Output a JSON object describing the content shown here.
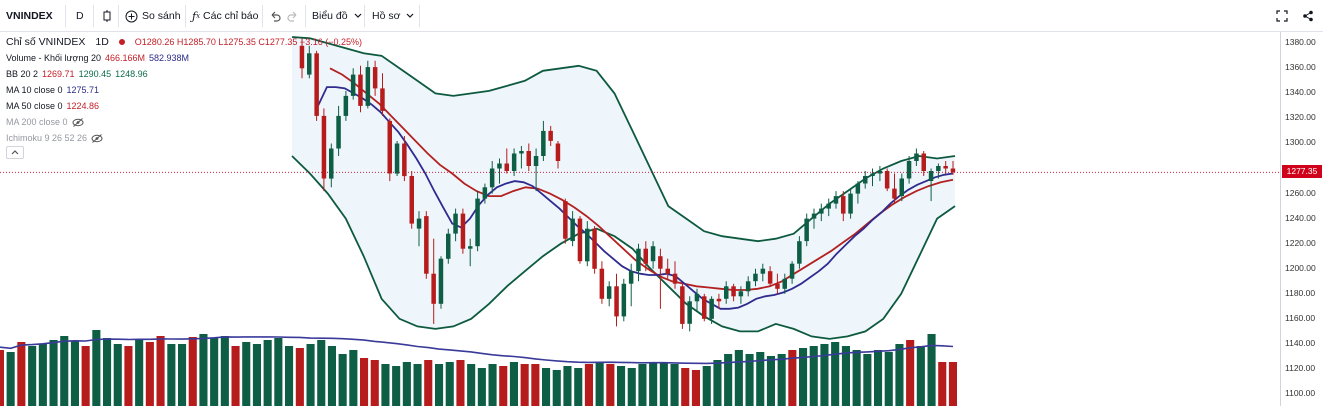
{
  "toolbar": {
    "symbol": "VNINDEX",
    "interval": "D",
    "compare_label": "So sánh",
    "indicators_label": "Các chỉ báo",
    "chart_type_label": "Biểu đồ",
    "profile_label": "Hồ sơ"
  },
  "legend": {
    "title": "Chỉ số VNINDEX",
    "interval": "1D",
    "ohlc": "O1280.26 H1285.70 L1275.35 C1277.35 −3.16 (−0.25%)",
    "volume": {
      "name": "Volume - Khối lượng 20",
      "v1": "466.166M",
      "v2": "582.938M"
    },
    "bb": {
      "name": "BB 20 2",
      "v1": "1269.71",
      "v2": "1290.45",
      "v3": "1248.96"
    },
    "ma10": {
      "name": "MA 10 close 0",
      "v1": "1275.71"
    },
    "ma50": {
      "name": "MA 50 close 0",
      "v1": "1224.86"
    },
    "ma200": {
      "name": "MA 200 close 0"
    },
    "ichimoku": {
      "name": "Ichimoku 9 26 52 26"
    }
  },
  "axis": {
    "ticks": [
      "1380.00",
      "1360.00",
      "1340.00",
      "1320.00",
      "1300.00",
      "1280.00",
      "1260.00",
      "1240.00",
      "1220.00",
      "1200.00",
      "1180.00",
      "1160.00",
      "1140.00",
      "1120.00",
      "1100.00"
    ],
    "last_price": "1277.35"
  },
  "colors": {
    "up": "#0e5e46",
    "down": "#b71c1c",
    "ma10": "#2f2b8f",
    "ma50": "#b32121",
    "bb": "#0d5a3f",
    "bb_fill": "#eef5fb",
    "volume_ma": "#3a3a9a"
  },
  "chart_data": {
    "type": "candlestick",
    "y_range": [
      1100,
      1385
    ],
    "candles": [
      [
        1378,
        1384,
        1352,
        1360
      ],
      [
        1355,
        1378,
        1352,
        1372
      ],
      [
        1372,
        1374,
        1318,
        1322
      ],
      [
        1322,
        1328,
        1262,
        1272
      ],
      [
        1272,
        1300,
        1265,
        1296
      ],
      [
        1296,
        1330,
        1290,
        1322
      ],
      [
        1322,
        1342,
        1318,
        1338
      ],
      [
        1338,
        1360,
        1335,
        1355
      ],
      [
        1355,
        1362,
        1325,
        1330
      ],
      [
        1330,
        1366,
        1328,
        1361
      ],
      [
        1361,
        1366,
        1338,
        1344
      ],
      [
        1344,
        1356,
        1322,
        1326
      ],
      [
        1318,
        1320,
        1270,
        1276
      ],
      [
        1276,
        1302,
        1274,
        1300
      ],
      [
        1300,
        1306,
        1270,
        1274
      ],
      [
        1274,
        1278,
        1232,
        1236
      ],
      [
        1232,
        1246,
        1218,
        1240
      ],
      [
        1242,
        1246,
        1192,
        1196
      ],
      [
        1196,
        1224,
        1156,
        1172
      ],
      [
        1172,
        1210,
        1168,
        1208
      ],
      [
        1208,
        1232,
        1204,
        1228
      ],
      [
        1228,
        1248,
        1222,
        1244
      ],
      [
        1244,
        1248,
        1212,
        1216
      ],
      [
        1216,
        1224,
        1202,
        1218
      ],
      [
        1218,
        1262,
        1214,
        1256
      ],
      [
        1256,
        1268,
        1252,
        1265
      ],
      [
        1265,
        1286,
        1260,
        1280
      ],
      [
        1280,
        1288,
        1268,
        1284
      ],
      [
        1284,
        1296,
        1276,
        1278
      ],
      [
        1278,
        1296,
        1274,
        1292
      ],
      [
        1292,
        1298,
        1280,
        1294
      ],
      [
        1294,
        1300,
        1278,
        1282
      ],
      [
        1282,
        1296,
        1262,
        1290
      ],
      [
        1290,
        1318,
        1286,
        1310
      ],
      [
        1310,
        1314,
        1298,
        1302
      ],
      [
        1300,
        1302,
        1280,
        1286
      ],
      [
        1254,
        1256,
        1220,
        1224
      ],
      [
        1222,
        1246,
        1218,
        1240
      ],
      [
        1240,
        1242,
        1204,
        1206
      ],
      [
        1206,
        1238,
        1202,
        1232
      ],
      [
        1232,
        1234,
        1196,
        1200
      ],
      [
        1200,
        1206,
        1172,
        1176
      ],
      [
        1176,
        1190,
        1170,
        1186
      ],
      [
        1186,
        1196,
        1154,
        1162
      ],
      [
        1162,
        1192,
        1158,
        1188
      ],
      [
        1188,
        1204,
        1170,
        1198
      ],
      [
        1198,
        1220,
        1190,
        1216
      ],
      [
        1216,
        1222,
        1198,
        1204
      ],
      [
        1206,
        1222,
        1200,
        1218
      ],
      [
        1210,
        1216,
        1168,
        1200
      ],
      [
        1200,
        1208,
        1192,
        1196
      ],
      [
        1196,
        1206,
        1184,
        1188
      ],
      [
        1186,
        1188,
        1152,
        1156
      ],
      [
        1156,
        1178,
        1150,
        1174
      ],
      [
        1174,
        1184,
        1166,
        1180
      ],
      [
        1178,
        1180,
        1158,
        1160
      ],
      [
        1160,
        1178,
        1156,
        1176
      ],
      [
        1176,
        1180,
        1168,
        1174
      ],
      [
        1176,
        1190,
        1172,
        1186
      ],
      [
        1186,
        1188,
        1174,
        1178
      ],
      [
        1178,
        1186,
        1172,
        1182
      ],
      [
        1182,
        1194,
        1178,
        1190
      ],
      [
        1190,
        1200,
        1186,
        1196
      ],
      [
        1196,
        1204,
        1190,
        1200
      ],
      [
        1198,
        1202,
        1186,
        1188
      ],
      [
        1188,
        1196,
        1180,
        1184
      ],
      [
        1184,
        1196,
        1180,
        1192
      ],
      [
        1192,
        1206,
        1188,
        1204
      ],
      [
        1204,
        1226,
        1200,
        1222
      ],
      [
        1222,
        1244,
        1218,
        1240
      ],
      [
        1240,
        1248,
        1232,
        1244
      ],
      [
        1244,
        1252,
        1238,
        1248
      ],
      [
        1248,
        1256,
        1242,
        1252
      ],
      [
        1252,
        1262,
        1248,
        1258
      ],
      [
        1258,
        1262,
        1238,
        1244
      ],
      [
        1244,
        1264,
        1240,
        1260
      ],
      [
        1260,
        1270,
        1252,
        1268
      ],
      [
        1268,
        1278,
        1264,
        1274
      ],
      [
        1274,
        1280,
        1266,
        1276
      ],
      [
        1276,
        1282,
        1270,
        1278
      ],
      [
        1278,
        1280,
        1262,
        1264
      ],
      [
        1264,
        1276,
        1252,
        1256
      ],
      [
        1258,
        1276,
        1254,
        1272
      ],
      [
        1272,
        1290,
        1268,
        1286
      ],
      [
        1286,
        1296,
        1282,
        1292
      ],
      [
        1292,
        1294,
        1274,
        1278
      ],
      [
        1270,
        1280,
        1254,
        1278
      ],
      [
        1278,
        1284,
        1272,
        1282
      ],
      [
        1282,
        1286,
        1276,
        1280
      ],
      [
        1280,
        1286,
        1275,
        1277
      ]
    ],
    "volume_range": [
      0,
      900
    ],
    "volume": [
      560,
      540,
      640,
      600,
      620,
      660,
      700,
      650,
      600,
      760,
      680,
      620,
      600,
      660,
      640,
      700,
      620,
      620,
      690,
      720,
      680,
      700,
      600,
      640,
      620,
      660,
      680,
      600,
      580,
      620,
      660,
      600,
      520,
      560,
      480,
      460,
      420,
      400,
      440,
      420,
      460,
      420,
      440,
      460,
      420,
      380,
      420,
      400,
      440,
      420,
      420,
      380,
      360,
      400,
      380,
      420,
      440,
      420,
      400,
      380,
      420,
      440,
      440,
      420,
      380,
      360,
      400,
      460,
      520,
      560,
      520,
      540,
      500,
      520,
      560,
      580,
      600,
      620,
      640,
      600,
      560,
      520,
      560,
      540,
      620,
      660,
      600,
      720,
      440,
      440
    ],
    "ma10": [
      1330,
      1345,
      1345,
      1344,
      1340,
      1336,
      1331,
      1325,
      1317,
      1309,
      1299,
      1288,
      1276,
      1262,
      1249,
      1236,
      1233,
      1240,
      1251,
      1259,
      1265,
      1268,
      1270,
      1269,
      1266,
      1260,
      1254,
      1248,
      1241,
      1234,
      1228,
      1221,
      1214,
      1208,
      1202,
      1198,
      1196,
      1195,
      1195,
      1196,
      1194,
      1188,
      1182,
      1176,
      1172,
      1168,
      1168,
      1169,
      1172,
      1176,
      1178,
      1179,
      1181,
      1184,
      1188,
      1193,
      1198,
      1204,
      1212,
      1219,
      1226,
      1232,
      1239,
      1245,
      1252,
      1258,
      1263,
      1267,
      1270,
      1273,
      1275,
      1276
    ],
    "ma50": [
      1360,
      1355,
      1348,
      1340,
      1332,
      1322,
      1312,
      1302,
      1292,
      1283,
      1276,
      1268,
      1262,
      1258,
      1258,
      1262,
      1265,
      1264,
      1260,
      1255,
      1249,
      1242,
      1234,
      1225,
      1216,
      1207,
      1200,
      1194,
      1190,
      1188,
      1186,
      1185,
      1184,
      1183,
      1183,
      1184,
      1186,
      1190,
      1196,
      1202,
      1208,
      1214,
      1221,
      1228,
      1236,
      1244,
      1251,
      1257,
      1262,
      1266,
      1269,
      1271
    ],
    "bb_upper": [
      1385,
      1384,
      1380,
      1376,
      1372,
      1370,
      1360,
      1350,
      1340,
      1338,
      1340,
      1342,
      1346,
      1350,
      1358,
      1360,
      1362,
      1358,
      1340,
      1310,
      1280,
      1250,
      1240,
      1230,
      1226,
      1224,
      1222,
      1224,
      1228,
      1240,
      1252,
      1262,
      1272,
      1280,
      1286,
      1290,
      1288,
      1290
    ],
    "bb_lower": [
      1290,
      1276,
      1260,
      1240,
      1210,
      1176,
      1160,
      1154,
      1152,
      1154,
      1160,
      1172,
      1186,
      1198,
      1210,
      1220,
      1228,
      1232,
      1226,
      1216,
      1200,
      1186,
      1172,
      1162,
      1154,
      1150,
      1150,
      1156,
      1152,
      1146,
      1144,
      1146,
      1150,
      1160,
      1180,
      1210,
      1240,
      1250
    ]
  }
}
